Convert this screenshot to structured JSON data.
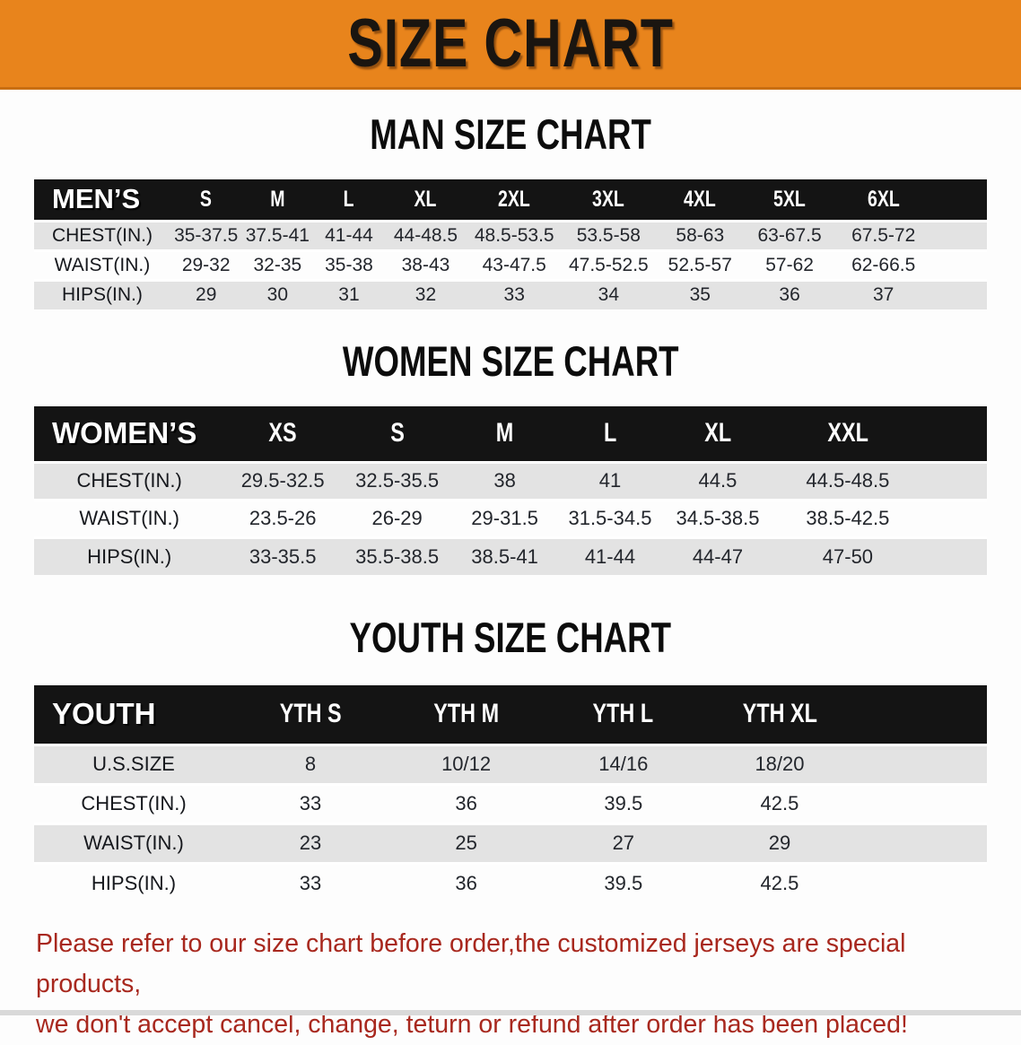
{
  "banner": {
    "title": "SIZE CHART"
  },
  "colors": {
    "banner_bg": "#E8841C",
    "header_band_bg": "#141414",
    "stripe_gray": "#E3E3E3",
    "disclaimer_red": "#A8281E"
  },
  "sections": [
    {
      "heading": "MAN SIZE CHART",
      "table": {
        "group_label": "MEN’S",
        "columns": [
          "S",
          "M",
          "L",
          "XL",
          "2XL",
          "3XL",
          "4XL",
          "5XL",
          "6XL"
        ],
        "rows": [
          {
            "label": "CHEST(IN.)",
            "values": [
              "35-37.5",
              "37.5-41",
              "41-44",
              "44-48.5",
              "48.5-53.5",
              "53.5-58",
              "58-63",
              "63-67.5",
              "67.5-72"
            ]
          },
          {
            "label": "WAIST(IN.)",
            "values": [
              "29-32",
              "32-35",
              "35-38",
              "38-43",
              "43-47.5",
              "47.5-52.5",
              "52.5-57",
              "57-62",
              "62-66.5"
            ]
          },
          {
            "label": "HIPS(IN.)",
            "values": [
              "29",
              "30",
              "31",
              "32",
              "33",
              "34",
              "35",
              "36",
              "37"
            ]
          }
        ]
      }
    },
    {
      "heading": "WOMEN SIZE CHART",
      "table": {
        "group_label": "WOMEN’S",
        "columns": [
          "XS",
          "S",
          "M",
          "L",
          "XL",
          "XXL"
        ],
        "rows": [
          {
            "label": "CHEST(IN.)",
            "values": [
              "29.5-32.5",
              "32.5-35.5",
              "38",
              "41",
              "44.5",
              "44.5-48.5"
            ]
          },
          {
            "label": "WAIST(IN.)",
            "values": [
              "23.5-26",
              "26-29",
              "29-31.5",
              "31.5-34.5",
              "34.5-38.5",
              "38.5-42.5"
            ]
          },
          {
            "label": "HIPS(IN.)",
            "values": [
              "33-35.5",
              "35.5-38.5",
              "38.5-41",
              "41-44",
              "44-47",
              "47-50"
            ]
          }
        ]
      }
    },
    {
      "heading": "YOUTH SIZE CHART",
      "table": {
        "group_label": "YOUTH",
        "columns": [
          "YTH S",
          "YTH M",
          "YTH L",
          "YTH XL"
        ],
        "rows": [
          {
            "label": "U.S.SIZE",
            "values": [
              "8",
              "10/12",
              "14/16",
              "18/20"
            ]
          },
          {
            "label": "CHEST(IN.)",
            "values": [
              "33",
              "36",
              "39.5",
              "42.5"
            ]
          },
          {
            "label": "WAIST(IN.)",
            "values": [
              "23",
              "25",
              "27",
              "29"
            ]
          },
          {
            "label": "HIPS(IN.)",
            "values": [
              "33",
              "36",
              "39.5",
              "42.5"
            ]
          }
        ]
      }
    }
  ],
  "disclaimer": {
    "line1": "Please refer to our size chart before order,the customized jerseys are special products,",
    "line2": "we don't accept cancel, change, teturn or refund after order has been placed!"
  }
}
